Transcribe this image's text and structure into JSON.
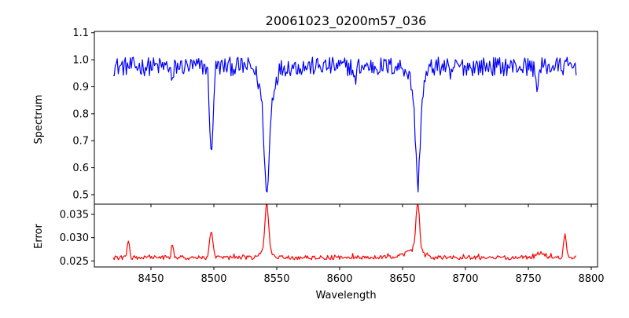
{
  "chart_data": {
    "type": "line",
    "title": "20061023_0200m57_036",
    "xlabel": "Wavelength",
    "xlim": [
      8405,
      8805
    ],
    "xticks": [
      8450,
      8500,
      8550,
      8600,
      8650,
      8700,
      8750,
      8800
    ],
    "panels": [
      {
        "name": "spectrum-panel",
        "ylabel": "Spectrum",
        "ylim": [
          0.465,
          1.105
        ],
        "yticks": [
          0.5,
          0.6,
          0.7,
          0.8,
          0.9,
          1.0,
          1.1
        ],
        "ytick_labels": [
          "0.5",
          "0.6",
          "0.7",
          "0.8",
          "0.9",
          "1.0",
          "1.1"
        ],
        "color": "#0000ff",
        "continuum": 0.975,
        "noise": 0.035,
        "x_range": [
          8420,
          8788
        ],
        "step": 0.8,
        "features": [
          {
            "center": 8498.0,
            "depth": 0.34,
            "width": 1.3
          },
          {
            "center": 8542.1,
            "depth": 0.3,
            "width": 1.7
          },
          {
            "center": 8542.1,
            "depth": 0.18,
            "width": 4.5
          },
          {
            "center": 8662.1,
            "depth": 0.3,
            "width": 1.6
          },
          {
            "center": 8662.1,
            "depth": 0.14,
            "width": 4.2
          },
          {
            "center": 8467.0,
            "depth": 0.07,
            "width": 0.8
          },
          {
            "center": 8612.0,
            "depth": 0.06,
            "width": 1.0
          },
          {
            "center": 8688.0,
            "depth": 0.05,
            "width": 1.0
          },
          {
            "center": 8757.0,
            "depth": 0.06,
            "width": 1.5
          }
        ]
      },
      {
        "name": "error-panel",
        "ylabel": "Error",
        "ylim": [
          0.0237,
          0.0372
        ],
        "yticks": [
          0.025,
          0.03,
          0.035
        ],
        "ytick_labels": [
          "0.025",
          "0.030",
          "0.035"
        ],
        "color": "#ff0000",
        "continuum": 0.0257,
        "noise": 0.00045,
        "x_range": [
          8420,
          8788
        ],
        "step": 0.8,
        "features": [
          {
            "center": 8432.0,
            "height": 0.004,
            "width": 0.8
          },
          {
            "center": 8467.0,
            "height": 0.0028,
            "width": 0.8
          },
          {
            "center": 8498.0,
            "height": 0.0055,
            "width": 1.2
          },
          {
            "center": 8542.1,
            "height": 0.0105,
            "width": 1.3
          },
          {
            "center": 8542.1,
            "height": 0.0018,
            "width": 4.0
          },
          {
            "center": 8662.1,
            "height": 0.01,
            "width": 1.3
          },
          {
            "center": 8662.1,
            "height": 0.0018,
            "width": 3.5
          },
          {
            "center": 8655.0,
            "height": 0.001,
            "width": 5.0
          },
          {
            "center": 8779.0,
            "height": 0.005,
            "width": 1.0
          },
          {
            "center": 8760.0,
            "height": 0.0012,
            "width": 3.0
          }
        ]
      }
    ]
  }
}
